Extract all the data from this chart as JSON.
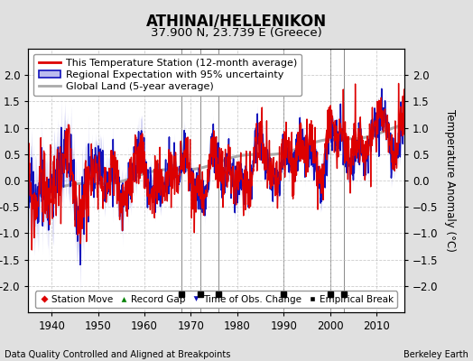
{
  "title": "ATHINAI/HELLENIKON",
  "subtitle": "37.900 N, 23.739 E (Greece)",
  "xlabel_left": "Data Quality Controlled and Aligned at Breakpoints",
  "xlabel_right": "Berkeley Earth",
  "ylabel": "Temperature Anomaly (°C)",
  "xlim": [
    1935,
    2016
  ],
  "ylim": [
    -2.5,
    2.5
  ],
  "yticks": [
    -2.0,
    -1.5,
    -1.0,
    -0.5,
    0.0,
    0.5,
    1.0,
    1.5,
    2.0
  ],
  "xticks": [
    1940,
    1950,
    1960,
    1970,
    1980,
    1990,
    2000,
    2010
  ],
  "background_color": "#e0e0e0",
  "plot_bg_color": "#ffffff",
  "grid_color": "#c0c0c0",
  "empirical_breaks": [
    1968,
    1972,
    1976,
    1990,
    2000,
    2003
  ],
  "red_line_color": "#dd0000",
  "blue_line_color": "#1111bb",
  "blue_fill_color": "#bbbbee",
  "gray_line_color": "#aaaaaa",
  "title_fontsize": 12,
  "subtitle_fontsize": 9.5,
  "axis_fontsize": 8.5,
  "legend_fontsize": 8,
  "marker_legend_fontsize": 7.5
}
